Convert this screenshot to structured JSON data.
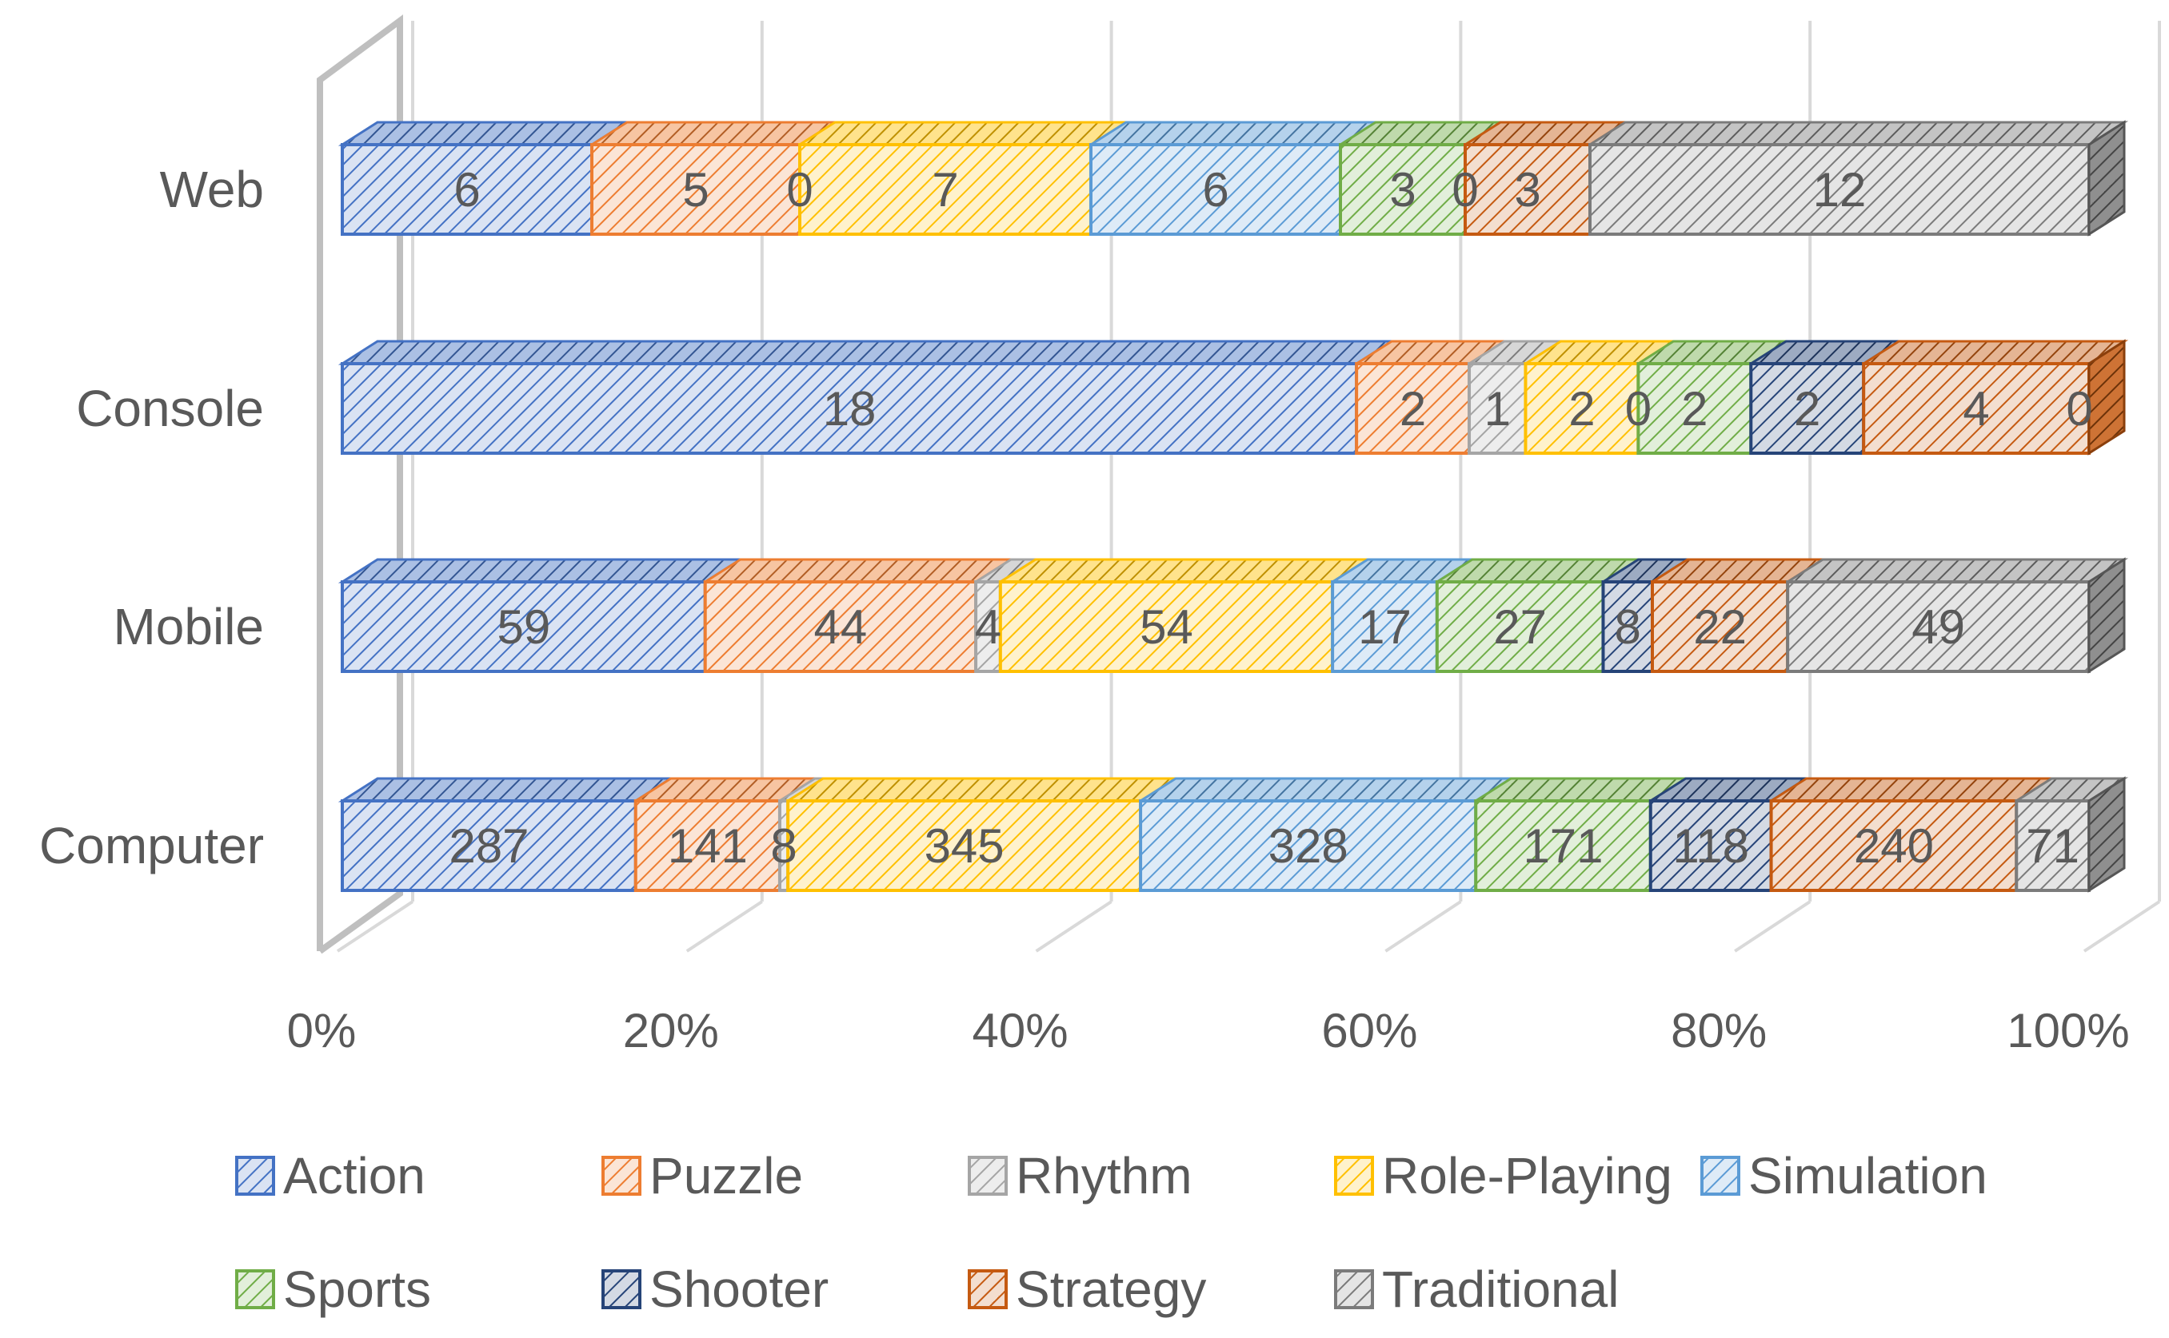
{
  "chart_data": {
    "type": "bar",
    "orientation": "horizontal",
    "stacked": "percent",
    "style": "3d",
    "categories": [
      "Computer",
      "Mobile",
      "Console",
      "Web"
    ],
    "series": [
      {
        "name": "Action",
        "color": "#4472C4",
        "values": [
          287,
          59,
          18,
          6
        ]
      },
      {
        "name": "Puzzle",
        "color": "#ED7D31",
        "values": [
          141,
          44,
          2,
          5
        ]
      },
      {
        "name": "Rhythm",
        "color": "#A5A5A5",
        "values": [
          8,
          4,
          1,
          0
        ]
      },
      {
        "name": "Role-Playing",
        "color": "#FFC000",
        "values": [
          345,
          54,
          2,
          7
        ]
      },
      {
        "name": "Simulation",
        "color": "#5B9BD5",
        "values": [
          328,
          17,
          0,
          6
        ]
      },
      {
        "name": "Sports",
        "color": "#70AD47",
        "values": [
          171,
          27,
          2,
          3
        ]
      },
      {
        "name": "Shooter",
        "color": "#264478",
        "values": [
          118,
          8,
          2,
          0
        ]
      },
      {
        "name": "Strategy",
        "color": "#C55A11",
        "values": [
          240,
          22,
          4,
          3
        ]
      },
      {
        "name": "Traditional",
        "color": "#7B7B7B",
        "values": [
          71,
          49,
          0,
          12
        ]
      }
    ],
    "xticks": [
      "0%",
      "20%",
      "40%",
      "60%",
      "80%",
      "100%"
    ],
    "xlim": [
      0,
      100
    ],
    "grid": true,
    "legend": "bottom"
  }
}
